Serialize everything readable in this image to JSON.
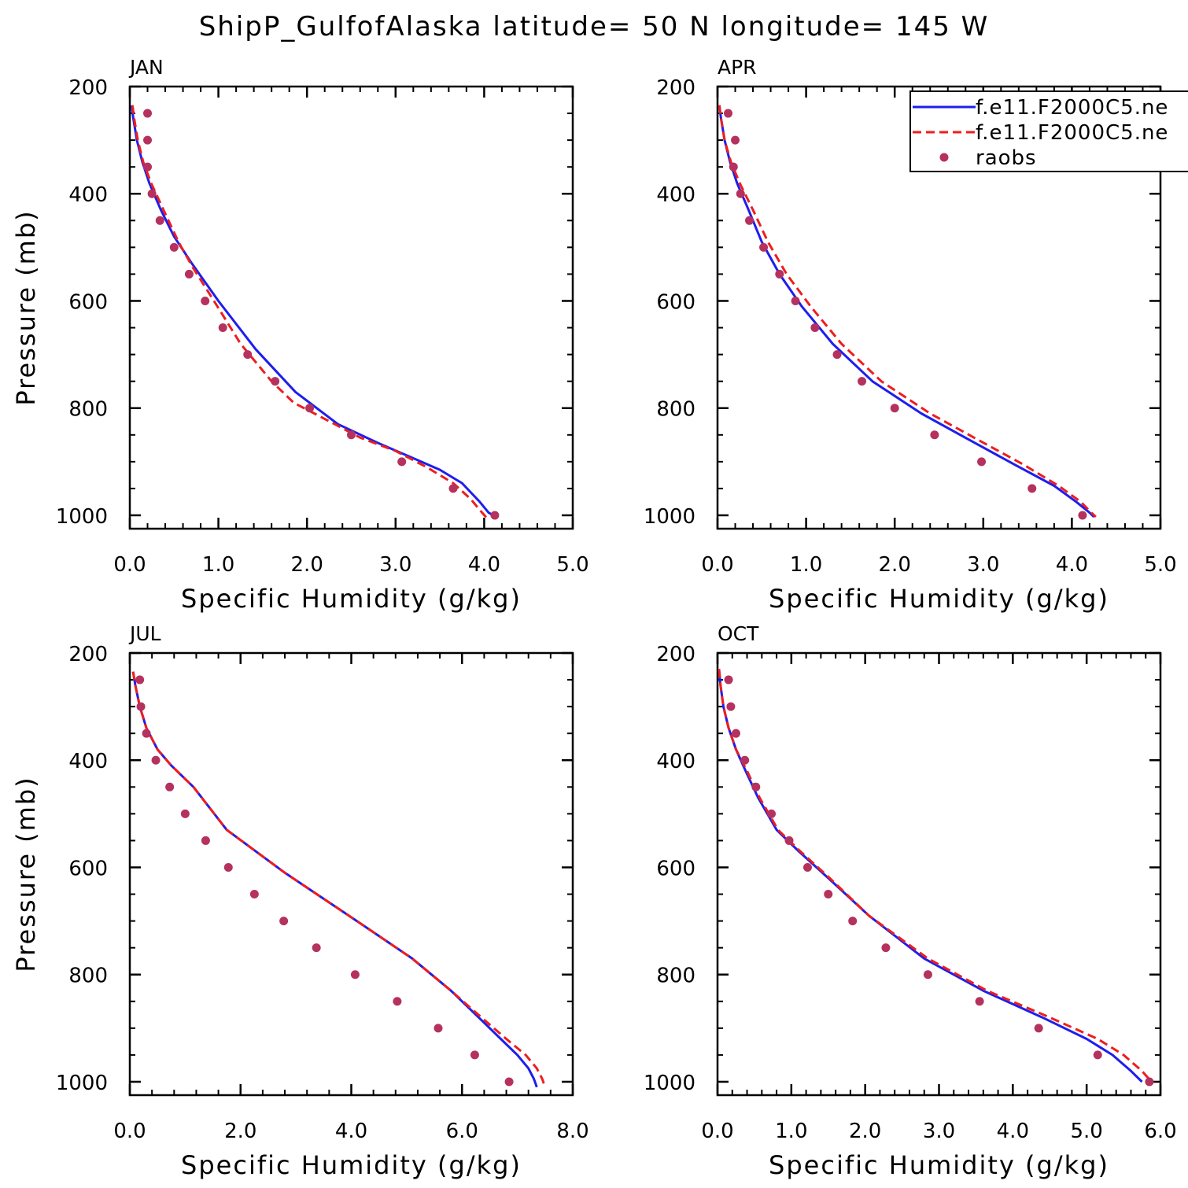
{
  "title": "ShipP_GulfofAlaska  latitude= 50 N longitude= 145 W",
  "legend": {
    "entries": [
      {
        "label": "f.e11.F2000C5.ne",
        "color": "#1e1eee",
        "style": "solid"
      },
      {
        "label": "f.e11.F2000C5.ne",
        "color": "#ee1e1e",
        "style": "dashed"
      },
      {
        "label": "raobs",
        "color": "#b5315e",
        "style": "marker"
      }
    ]
  },
  "chart_data": [
    {
      "type": "line",
      "panel_label": "JAN",
      "xlabel": "Specific Humidity (g/kg)",
      "ylabel": "Pressure (mb)",
      "xlim": [
        0,
        5
      ],
      "ylim": [
        200,
        1025
      ],
      "xticks": [
        0,
        1,
        2,
        3,
        4,
        5
      ],
      "xtick_labels": [
        "0.0",
        "1.0",
        "2.0",
        "3.0",
        "4.0",
        "5.0"
      ],
      "yticks": [
        200,
        400,
        600,
        800,
        1000
      ],
      "ytick_labels": [
        "200",
        "400",
        "600",
        "800",
        "1000"
      ],
      "series": [
        {
          "name": "f.e11.F2000C5.ne",
          "style": "solid",
          "color": "#1e1eee",
          "x": [
            0.02,
            0.04,
            0.08,
            0.14,
            0.22,
            0.35,
            0.5,
            0.7,
            1.0,
            1.42,
            1.87,
            2.35,
            2.8,
            3.15,
            3.5,
            3.75,
            3.95,
            4.05,
            4.1
          ],
          "y": [
            235,
            260,
            300,
            340,
            380,
            430,
            480,
            530,
            600,
            690,
            770,
            830,
            865,
            890,
            915,
            940,
            975,
            995,
            1000
          ]
        },
        {
          "name": "f.e11.F2000C5.ne",
          "style": "dashed",
          "color": "#ee1e1e",
          "x": [
            0.03,
            0.05,
            0.09,
            0.15,
            0.24,
            0.38,
            0.55,
            0.72,
            0.95,
            1.25,
            1.6,
            1.85,
            2.2,
            2.6,
            3.0,
            3.35,
            3.65,
            3.85,
            3.95,
            4.03
          ],
          "y": [
            235,
            260,
            300,
            340,
            380,
            430,
            490,
            540,
            600,
            680,
            750,
            790,
            820,
            855,
            880,
            910,
            940,
            970,
            990,
            1005
          ]
        },
        {
          "name": "raobs",
          "style": "marker",
          "color": "#b5315e",
          "x": [
            0.2,
            0.2,
            0.2,
            0.25,
            0.34,
            0.5,
            0.67,
            0.85,
            1.05,
            1.33,
            1.64,
            2.03,
            2.5,
            3.07,
            3.65,
            4.12
          ],
          "y": [
            250,
            300,
            350,
            400,
            450,
            500,
            550,
            600,
            650,
            700,
            750,
            800,
            850,
            900,
            950,
            1000
          ]
        }
      ]
    },
    {
      "type": "line",
      "panel_label": "APR",
      "xlabel": "Specific Humidity (g/kg)",
      "ylabel": "",
      "xlim": [
        0,
        5
      ],
      "ylim": [
        200,
        1025
      ],
      "xticks": [
        0,
        1,
        2,
        3,
        4,
        5
      ],
      "xtick_labels": [
        "0.0",
        "1.0",
        "2.0",
        "3.0",
        "4.0",
        "5.0"
      ],
      "yticks": [
        200,
        400,
        600,
        800,
        1000
      ],
      "ytick_labels": [
        "200",
        "400",
        "600",
        "800",
        "1000"
      ],
      "series": [
        {
          "name": "f.e11.F2000C5.ne",
          "style": "solid",
          "color": "#1e1eee",
          "x": [
            0.02,
            0.04,
            0.08,
            0.14,
            0.22,
            0.35,
            0.5,
            0.7,
            0.95,
            1.3,
            1.75,
            2.3,
            2.85,
            3.35,
            3.8,
            4.05,
            4.2,
            4.25
          ],
          "y": [
            235,
            260,
            300,
            340,
            380,
            430,
            490,
            550,
            610,
            680,
            750,
            810,
            860,
            905,
            945,
            975,
            995,
            1003
          ]
        },
        {
          "name": "f.e11.F2000C5.ne",
          "style": "dashed",
          "color": "#ee1e1e",
          "x": [
            0.02,
            0.04,
            0.08,
            0.15,
            0.25,
            0.4,
            0.57,
            0.78,
            1.05,
            1.4,
            1.85,
            2.4,
            2.95,
            3.45,
            3.85,
            4.1,
            4.22,
            4.27
          ],
          "y": [
            235,
            260,
            300,
            340,
            380,
            430,
            490,
            550,
            610,
            680,
            750,
            810,
            860,
            905,
            945,
            975,
            995,
            1003
          ]
        },
        {
          "name": "raobs",
          "style": "marker",
          "color": "#b5315e",
          "x": [
            0.12,
            0.2,
            0.18,
            0.26,
            0.36,
            0.52,
            0.7,
            0.88,
            1.1,
            1.35,
            1.63,
            2.0,
            2.45,
            2.98,
            3.55,
            4.12
          ],
          "y": [
            250,
            300,
            350,
            400,
            450,
            500,
            550,
            600,
            650,
            700,
            750,
            800,
            850,
            900,
            950,
            1000
          ]
        }
      ]
    },
    {
      "type": "line",
      "panel_label": "JUL",
      "xlabel": "Specific Humidity (g/kg)",
      "ylabel": "Pressure (mb)",
      "xlim": [
        0,
        8
      ],
      "ylim": [
        200,
        1025
      ],
      "xticks": [
        0,
        2,
        4,
        6,
        8
      ],
      "xtick_labels": [
        "0.0",
        "2.0",
        "4.0",
        "6.0",
        "8.0"
      ],
      "yticks": [
        200,
        400,
        600,
        800,
        1000
      ],
      "ytick_labels": [
        "200",
        "400",
        "600",
        "800",
        "1000"
      ],
      "series": [
        {
          "name": "f.e11.F2000C5.ne",
          "style": "solid",
          "color": "#1e1eee",
          "x": [
            0.06,
            0.1,
            0.18,
            0.3,
            0.5,
            0.75,
            1.15,
            1.75,
            2.8,
            4.1,
            5.1,
            5.8,
            6.3,
            6.7,
            7.0,
            7.2,
            7.3,
            7.35
          ],
          "y": [
            235,
            260,
            300,
            340,
            380,
            410,
            450,
            530,
            610,
            700,
            770,
            830,
            880,
            920,
            950,
            975,
            995,
            1010
          ]
        },
        {
          "name": "f.e11.F2000C5.ne",
          "style": "dashed",
          "color": "#ee1e1e",
          "x": [
            0.06,
            0.1,
            0.18,
            0.3,
            0.5,
            0.75,
            1.15,
            1.75,
            2.8,
            4.1,
            5.1,
            5.8,
            6.35,
            6.8,
            7.15,
            7.35,
            7.45,
            7.5
          ],
          "y": [
            235,
            260,
            300,
            340,
            380,
            410,
            450,
            530,
            610,
            700,
            770,
            830,
            880,
            920,
            950,
            975,
            995,
            1010
          ]
        },
        {
          "name": "raobs",
          "style": "marker",
          "color": "#b5315e",
          "x": [
            0.18,
            0.2,
            0.3,
            0.47,
            0.72,
            1.0,
            1.37,
            1.78,
            2.25,
            2.78,
            3.37,
            4.07,
            4.83,
            5.57,
            6.23,
            6.85
          ],
          "y": [
            250,
            300,
            350,
            400,
            450,
            500,
            550,
            600,
            650,
            700,
            750,
            800,
            850,
            900,
            950,
            1000
          ]
        }
      ]
    },
    {
      "type": "line",
      "panel_label": "OCT",
      "xlabel": "Specific Humidity (g/kg)",
      "ylabel": "",
      "xlim": [
        0,
        6
      ],
      "ylim": [
        200,
        1025
      ],
      "xticks": [
        0,
        1,
        2,
        3,
        4,
        5,
        6
      ],
      "xtick_labels": [
        "0.0",
        "1.0",
        "2.0",
        "3.0",
        "4.0",
        "5.0",
        "6.0"
      ],
      "yticks": [
        200,
        400,
        600,
        800,
        1000
      ],
      "ytick_labels": [
        "200",
        "400",
        "600",
        "800",
        "1000"
      ],
      "series": [
        {
          "name": "f.e11.F2000C5.ne",
          "style": "solid",
          "color": "#1e1eee",
          "x": [
            0.02,
            0.04,
            0.08,
            0.15,
            0.25,
            0.38,
            0.55,
            0.8,
            1.1,
            1.5,
            2.05,
            2.8,
            3.6,
            4.4,
            5.0,
            5.35,
            5.6,
            5.75
          ],
          "y": [
            230,
            260,
            300,
            340,
            380,
            420,
            470,
            530,
            570,
            620,
            690,
            770,
            830,
            880,
            920,
            950,
            980,
            1000
          ]
        },
        {
          "name": "f.e11.F2000C5.ne",
          "style": "dashed",
          "color": "#ee1e1e",
          "x": [
            0.02,
            0.04,
            0.08,
            0.15,
            0.25,
            0.4,
            0.57,
            0.82,
            1.12,
            1.52,
            2.05,
            2.85,
            3.65,
            4.5,
            5.15,
            5.5,
            5.75,
            5.88
          ],
          "y": [
            230,
            260,
            300,
            340,
            380,
            420,
            470,
            530,
            570,
            620,
            690,
            770,
            830,
            880,
            920,
            950,
            980,
            1000
          ]
        },
        {
          "name": "raobs",
          "style": "marker",
          "color": "#b5315e",
          "x": [
            0.15,
            0.18,
            0.25,
            0.37,
            0.52,
            0.73,
            0.97,
            1.22,
            1.5,
            1.83,
            2.28,
            2.85,
            3.55,
            4.35,
            5.15,
            5.85
          ],
          "y": [
            250,
            300,
            350,
            400,
            450,
            500,
            550,
            600,
            650,
            700,
            750,
            800,
            850,
            900,
            950,
            1000
          ]
        }
      ]
    }
  ]
}
